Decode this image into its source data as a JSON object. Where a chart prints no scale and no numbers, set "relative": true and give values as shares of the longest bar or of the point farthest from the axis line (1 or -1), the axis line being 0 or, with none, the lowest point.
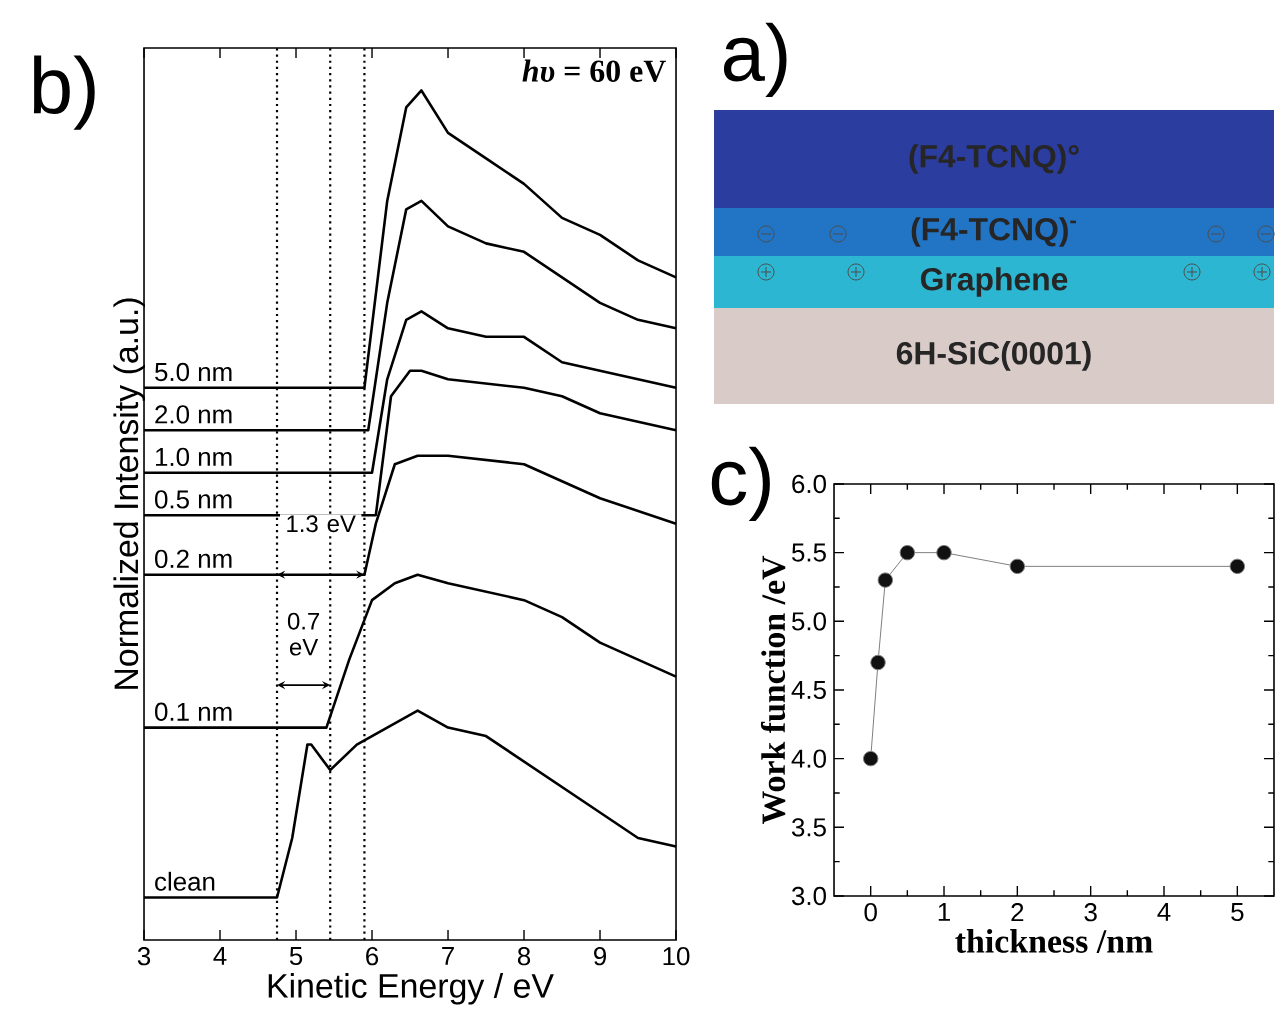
{
  "chart_data": [
    {
      "type": "line",
      "title": "b)",
      "xlabel": "Kinetic Energy / eV",
      "ylabel": "Normalized Intensity (a.u.)",
      "relative": true,
      "xlim": [
        3,
        10
      ],
      "xticks": [
        3,
        4,
        5,
        6,
        7,
        8,
        9,
        10
      ],
      "tick_labels": "x",
      "line_style": "solid",
      "series": [
        {
          "name": "5.0 nm",
          "color": "#000000",
          "x": [
            3,
            5.9,
            6.2,
            6.45,
            6.65,
            7.0,
            7.5,
            8.0,
            8.5,
            9.0,
            9.5,
            10
          ],
          "values": [
            0.65,
            0.65,
            0.87,
            0.98,
            1.0,
            0.95,
            0.92,
            0.89,
            0.85,
            0.83,
            0.8,
            0.78
          ]
        },
        {
          "name": "2.0 nm",
          "color": "#000000",
          "x": [
            3,
            5.95,
            6.2,
            6.45,
            6.65,
            7.0,
            7.5,
            8.0,
            8.5,
            9.0,
            9.5,
            10
          ],
          "values": [
            0.6,
            0.6,
            0.75,
            0.86,
            0.87,
            0.84,
            0.82,
            0.81,
            0.78,
            0.75,
            0.73,
            0.72
          ]
        },
        {
          "name": "1.0 nm",
          "color": "#000000",
          "x": [
            3,
            6.0,
            6.2,
            6.45,
            6.65,
            7.0,
            7.5,
            8.0,
            8.5,
            9.0,
            9.5,
            10
          ],
          "values": [
            0.55,
            0.55,
            0.66,
            0.73,
            0.74,
            0.72,
            0.71,
            0.71,
            0.68,
            0.67,
            0.66,
            0.65
          ]
        },
        {
          "name": "0.5 nm",
          "color": "#000000",
          "x": [
            3,
            6.05,
            6.25,
            6.5,
            6.65,
            7.0,
            8.0,
            8.5,
            9.0,
            10
          ],
          "values": [
            0.5,
            0.5,
            0.64,
            0.67,
            0.67,
            0.66,
            0.65,
            0.64,
            0.62,
            0.6
          ]
        },
        {
          "name": "0.2 nm",
          "color": "#000000",
          "x": [
            3,
            5.9,
            6.05,
            6.3,
            6.6,
            7.0,
            8.0,
            9.0,
            10
          ],
          "values": [
            0.43,
            0.43,
            0.49,
            0.56,
            0.57,
            0.57,
            0.56,
            0.52,
            0.49
          ]
        },
        {
          "name": "0.1 nm",
          "color": "#000000",
          "x": [
            3,
            5.4,
            5.7,
            6.0,
            6.3,
            6.6,
            7.0,
            8.0,
            8.5,
            9.0,
            9.5,
            10
          ],
          "values": [
            0.25,
            0.25,
            0.33,
            0.4,
            0.42,
            0.43,
            0.42,
            0.4,
            0.38,
            0.35,
            0.33,
            0.31
          ]
        },
        {
          "name": "clean",
          "color": "#000000",
          "x": [
            3,
            4.75,
            4.95,
            5.15,
            5.2,
            5.45,
            5.8,
            6.2,
            6.6,
            7.0,
            7.5,
            8.0,
            8.5,
            9.0,
            9.5,
            10
          ],
          "values": [
            0.05,
            0.05,
            0.12,
            0.23,
            0.23,
            0.2,
            0.23,
            0.25,
            0.27,
            0.25,
            0.24,
            0.21,
            0.18,
            0.15,
            0.12,
            0.11
          ]
        }
      ],
      "ref_lines": [
        {
          "axis": "x",
          "value": 4.75,
          "color": "#000000",
          "line_style": "dotted"
        },
        {
          "axis": "x",
          "value": 5.45,
          "color": "#000000",
          "line_style": "dotted"
        },
        {
          "axis": "x",
          "value": 5.9,
          "color": "#000000",
          "line_style": "dotted"
        }
      ],
      "annotations": [
        "*hυ* = 60 eV",
        "0.7 eV",
        "1.3 eV"
      ]
    },
    {
      "type": "other",
      "title": "a)",
      "categories": [
        "(F4-TCNQ)°",
        "(F4-TCNQ)$^{-}$",
        "Graphene",
        "6H-SiC(0001)"
      ],
      "colors": [
        "#2b3d9e",
        "#2274c4",
        "#2cb6d2",
        "#d9cbc7"
      ]
    },
    {
      "type": "line",
      "title": "c)",
      "xlabel": "thickness /nm",
      "ylabel": "Work function /eV",
      "xlim": [
        -0.5,
        5.5
      ],
      "ylim": [
        3.0,
        6.0
      ],
      "xticks": [
        0,
        1,
        2,
        3,
        4,
        5
      ],
      "yticks": [
        {
          "value": 3.0,
          "label": "3.0"
        },
        {
          "value": 3.5,
          "label": "3.5"
        },
        {
          "value": 4.0,
          "label": "4.0"
        },
        {
          "value": 4.5,
          "label": "4.5"
        },
        {
          "value": 5.0,
          "label": "5.0"
        },
        {
          "value": 5.5,
          "label": "5.5"
        },
        {
          "value": 6.0,
          "label": "6.0"
        }
      ],
      "x": [
        0,
        0.1,
        0.2,
        0.5,
        1,
        2,
        5
      ],
      "values": [
        4.0,
        4.7,
        5.3,
        5.5,
        5.5,
        5.4,
        5.4
      ],
      "color": "#111111",
      "marker": "circle",
      "line_style": "solid"
    }
  ]
}
